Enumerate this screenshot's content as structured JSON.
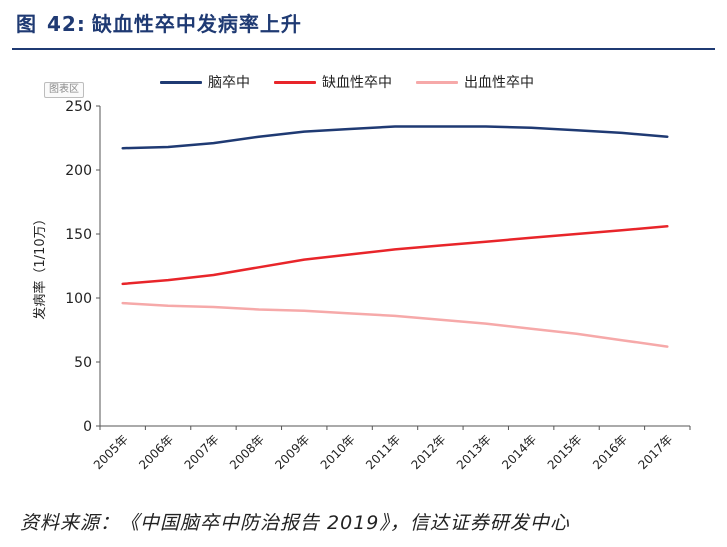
{
  "figure": {
    "label": "图",
    "number": "42:",
    "title": "缺血性卒中发病率上升"
  },
  "badge": "图表区",
  "source": "资料来源：《中国脑卒中防治报告 2019》，信达证券研发中心",
  "chart_data": {
    "type": "line",
    "title": "缺血性卒中发病率上升",
    "xlabel": "",
    "ylabel": "发病率（1/10万）",
    "ylim": [
      0,
      250
    ],
    "yticks": [
      0,
      50,
      100,
      150,
      200,
      250
    ],
    "grid": false,
    "legend_position": "top",
    "categories": [
      "2005年",
      "2006年",
      "2007年",
      "2008年",
      "2009年",
      "2010年",
      "2011年",
      "2012年",
      "2013年",
      "2014年",
      "2015年",
      "2016年",
      "2017年"
    ],
    "series": [
      {
        "name": "脑卒中",
        "color": "#1f3a73",
        "values": [
          217,
          218,
          221,
          226,
          230,
          232,
          234,
          234,
          234,
          233,
          231,
          229,
          226
        ]
      },
      {
        "name": "缺血性卒中",
        "color": "#e8252a",
        "values": [
          111,
          114,
          118,
          124,
          130,
          134,
          138,
          141,
          144,
          147,
          150,
          153,
          156
        ]
      },
      {
        "name": "出血性卒中",
        "color": "#f6a9a9",
        "values": [
          96,
          94,
          93,
          91,
          90,
          88,
          86,
          83,
          80,
          76,
          72,
          67,
          62
        ]
      }
    ]
  }
}
